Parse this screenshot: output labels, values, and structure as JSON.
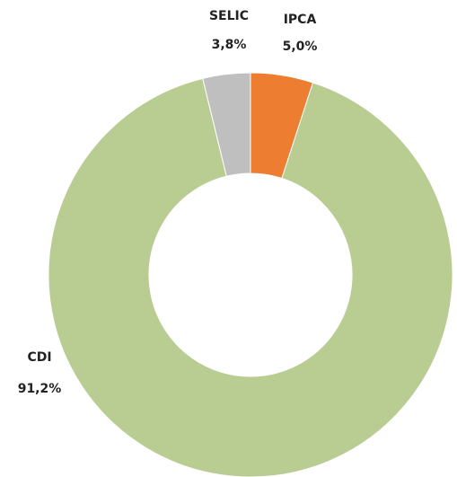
{
  "chart_data": {
    "type": "donut",
    "categories": [
      "IPCA",
      "CDI",
      "SELIC"
    ],
    "values": [
      5.0,
      91.2,
      3.8
    ],
    "value_labels": [
      "5,0%",
      "91,2%",
      "3,8%"
    ],
    "colors": [
      "#ed7d31",
      "#b9cd93",
      "#bfbfbf"
    ]
  }
}
